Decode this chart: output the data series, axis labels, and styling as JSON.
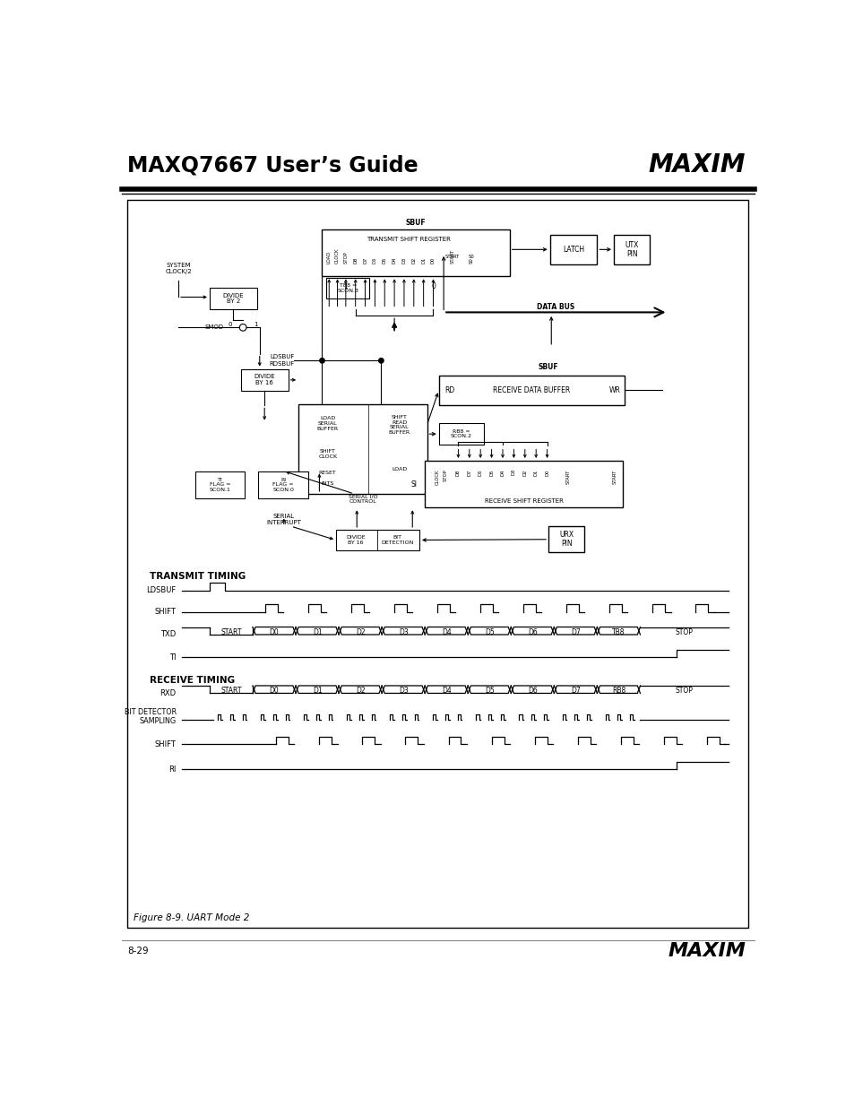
{
  "title": "MAXQ7667 User’s Guide",
  "page_number": "8-29",
  "figure_caption": "Figure 8-9. UART Mode 2",
  "bg_color": "#ffffff",
  "txd_labels": [
    "START",
    "D0",
    "D1",
    "D2",
    "D3",
    "D4",
    "D5",
    "D6",
    "D7",
    "TB8",
    "STOP"
  ],
  "rxd_labels": [
    "START",
    "D0",
    "D1",
    "D2",
    "D3",
    "D4",
    "D5",
    "D6",
    "D7",
    "RB8",
    "STOP"
  ],
  "transmit_timing_label": "TRANSMIT TIMING",
  "receive_timing_label": "RECEIVE TIMING"
}
